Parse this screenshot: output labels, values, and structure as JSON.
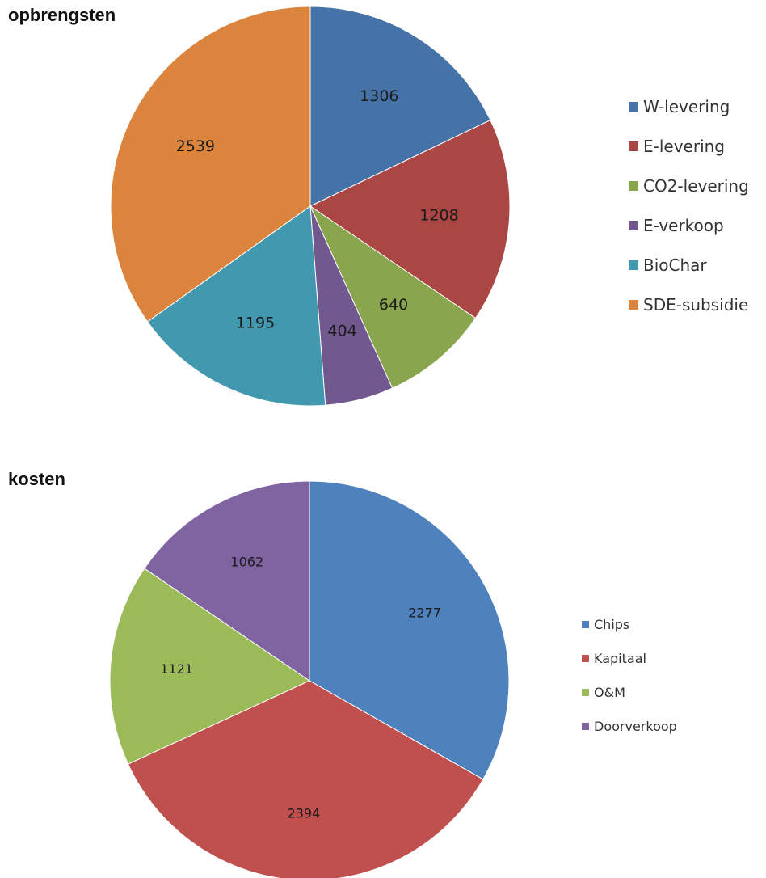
{
  "chart_data": [
    {
      "type": "pie",
      "title": "opbrengsten",
      "legend_position": "right",
      "categories": [
        "W-levering",
        "E-levering",
        "CO2-levering",
        "E-verkoop",
        "BioChar",
        "SDE-subsidie"
      ],
      "values": [
        1306,
        1208,
        640,
        404,
        1195,
        2539
      ],
      "colors": [
        "#4572a7",
        "#aa4643",
        "#89a54e",
        "#71588f",
        "#4198af",
        "#db843d"
      ]
    },
    {
      "type": "pie",
      "title": "kosten",
      "legend_position": "right",
      "categories": [
        "Chips",
        "Kapitaal",
        "O&M",
        "Doorverkoop"
      ],
      "values": [
        2277,
        2394,
        1121,
        1062
      ],
      "colors": [
        "#4f81bd",
        "#c0504d",
        "#9bbb59",
        "#8064a2"
      ]
    }
  ]
}
